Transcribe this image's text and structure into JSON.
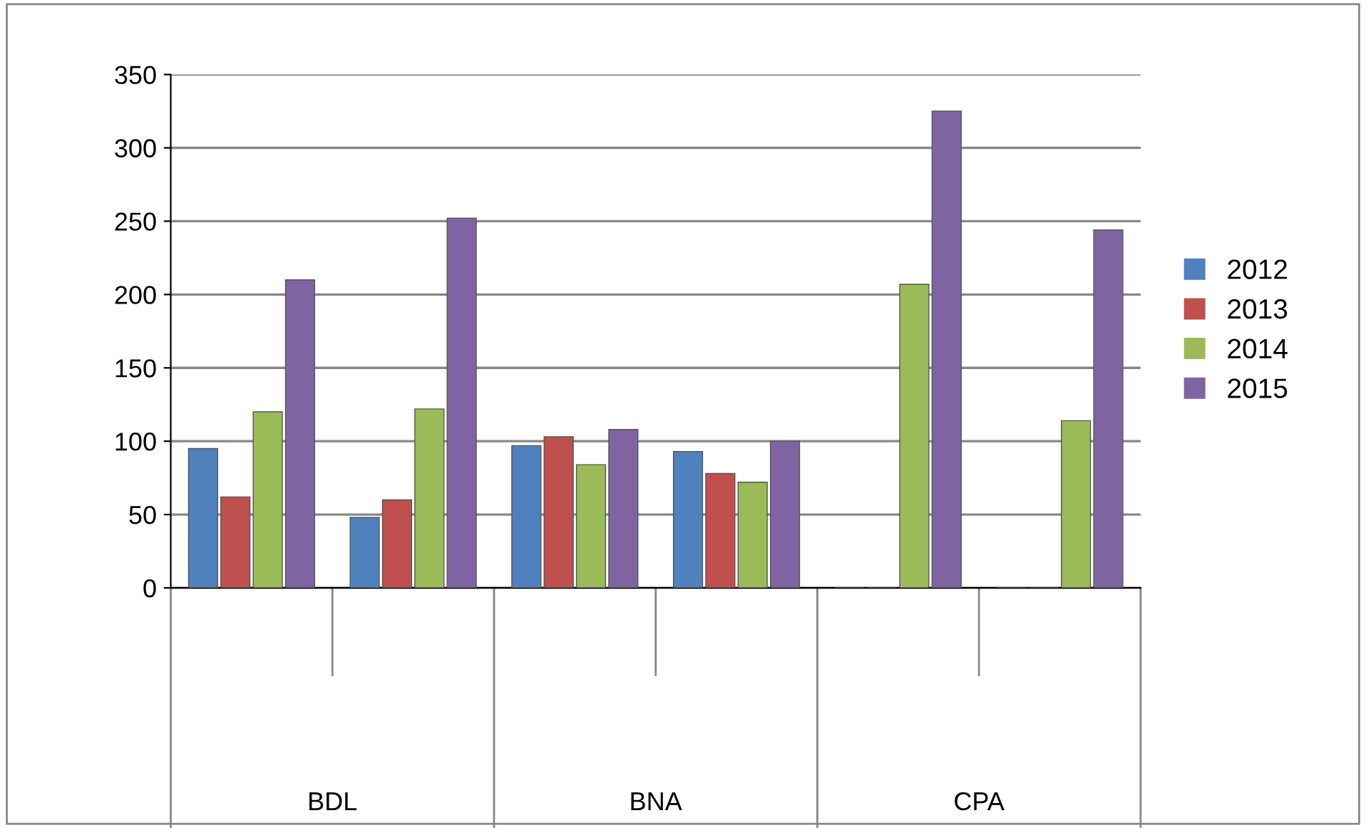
{
  "chart_data": {
    "type": "bar",
    "categories": [
      null,
      null,
      null,
      null,
      null,
      null
    ],
    "series": [
      {
        "name": "2012",
        "color": "#4f81bd",
        "values": [
          95,
          48,
          97,
          93,
          null,
          null
        ]
      },
      {
        "name": "2013",
        "color": "#c0504d",
        "values": [
          62,
          60,
          103,
          78,
          null,
          null
        ]
      },
      {
        "name": "2014",
        "color": "#9bbb59",
        "values": [
          120,
          122,
          84,
          72,
          207,
          114
        ]
      },
      {
        "name": "2015",
        "color": "#8064a2",
        "values": [
          210,
          252,
          108,
          100,
          325,
          244
        ]
      }
    ],
    "annotations": [
      "BDL",
      "BNA",
      "CPA"
    ],
    "ylim": [
      0,
      350
    ],
    "yticks": [
      0,
      50,
      100,
      150,
      200,
      250,
      300,
      350
    ],
    "grid": "y",
    "legend": "right"
  }
}
